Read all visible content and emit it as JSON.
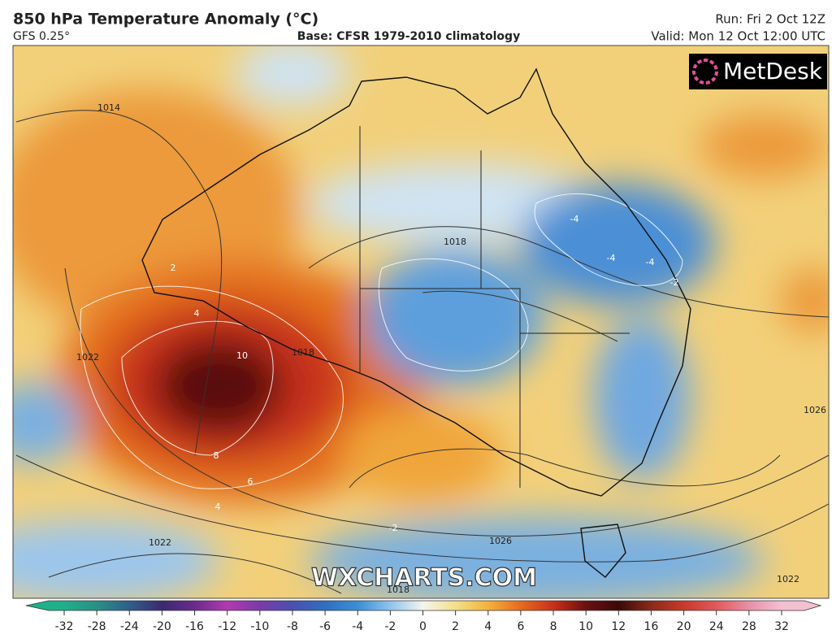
{
  "header": {
    "title": "850 hPa Temperature Anomaly (°C)",
    "model": "GFS 0.25°",
    "base": "Base: CFSR 1979-2010 climatology",
    "run": "Run: Fri 2 Oct 12Z",
    "valid": "Valid: Mon 12 Oct 12:00 UTC"
  },
  "logo": "MetDesk",
  "watermark": "WXCHARTS.COM",
  "colorbar": {
    "ticks": [
      -32,
      -28,
      -24,
      -20,
      -16,
      -12,
      -10,
      -8,
      -6,
      -4,
      -2,
      0,
      2,
      4,
      6,
      8,
      10,
      12,
      16,
      20,
      24,
      28,
      32
    ],
    "colors": [
      "#1fb08a",
      "#2a8f86",
      "#2f5f8a",
      "#3b2a6e",
      "#6a2a8c",
      "#b23ab0",
      "#7a3aa8",
      "#4a50b0",
      "#2f6fc0",
      "#3a8fd6",
      "#8fc4ec",
      "#f4f4f0",
      "#f3e08a",
      "#f3b23a",
      "#e86a1e",
      "#c8301a",
      "#6a1010",
      "#3a0a08",
      "#8a2a1a",
      "#c83a2a",
      "#e05a5a",
      "#e890a8",
      "#f3c0d0"
    ]
  },
  "contours": {
    "labels": [
      "1014",
      "1018",
      "1022",
      "1022",
      "1026",
      "1026",
      "1022",
      "1018",
      "1018",
      "10",
      "8",
      "6",
      "4",
      "4",
      "-4",
      "-4",
      "-4",
      "-2",
      "-2",
      "2"
    ]
  }
}
